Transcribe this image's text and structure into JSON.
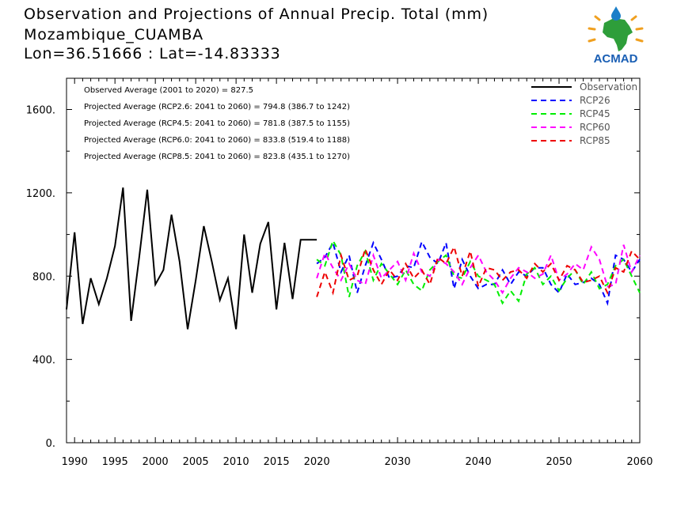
{
  "header": {
    "line1": "Observation and Projections of Annual Precip. Total (mm)",
    "line2": "Mozambique_CUAMBA",
    "line3": "Lon=36.51666 : Lat=-14.83333"
  },
  "logo": {
    "text": "ACMAD",
    "icon": "africa-map-logo"
  },
  "stats": {
    "observed": "Observed Average (2001 to 2020) = 827.5",
    "rcp26": "Projected Average (RCP2.6: 2041 to 2060) = 794.8 (386.7 to 1242)",
    "rcp45": "Projected Average (RCP4.5: 2041 to 2060) = 781.8 (387.5 to 1155)",
    "rcp60": "Projected Average (RCP6.0: 2041 to 2060) = 833.8 (519.4 to 1188)",
    "rcp85": "Projected Average (RCP8.5: 2041 to 2060) = 823.8 (435.1 to 1270)"
  },
  "chart_data": {
    "type": "line",
    "xlim": [
      1989,
      2060
    ],
    "ylim": [
      0,
      1750
    ],
    "x_ticks": [
      1990,
      1995,
      2000,
      2005,
      2010,
      2015,
      2020,
      2030,
      2040,
      2050,
      2060
    ],
    "y_ticks": [
      0,
      400,
      800,
      1200,
      1600
    ],
    "y_tick_labels": [
      "0.",
      "400.",
      "800.",
      "1200.",
      "1600."
    ],
    "legend_position": "top-right",
    "series": [
      {
        "name": "Observation",
        "color": "#000000",
        "style": "solid",
        "x": [
          1989,
          1990,
          1991,
          1992,
          1993,
          1994,
          1995,
          1996,
          1997,
          1998,
          1999,
          2000,
          2001,
          2002,
          2003,
          2004,
          2005,
          2006,
          2007,
          2008,
          2009,
          2010,
          2011,
          2012,
          2013,
          2014,
          2015,
          2016,
          2017,
          2018,
          2019,
          2020
        ],
        "y": [
          640,
          1010,
          570,
          790,
          665,
          790,
          945,
          1225,
          585,
          890,
          1215,
          760,
          830,
          1095,
          870,
          545,
          780,
          1040,
          870,
          685,
          790,
          545,
          1000,
          720,
          955,
          1060,
          640,
          960,
          690,
          975,
          975,
          975
        ]
      },
      {
        "name": "RCP26",
        "color": "#0000ff",
        "style": "dashed",
        "x": [
          2020,
          2021,
          2022,
          2023,
          2024,
          2025,
          2026,
          2027,
          2028,
          2029,
          2030,
          2031,
          2032,
          2033,
          2034,
          2035,
          2036,
          2037,
          2038,
          2039,
          2040,
          2041,
          2042,
          2043,
          2044,
          2045,
          2046,
          2047,
          2048,
          2049,
          2050,
          2051,
          2052,
          2053,
          2054,
          2055,
          2056,
          2057,
          2058,
          2059,
          2060
        ],
        "y": [
          860,
          890,
          960,
          820,
          900,
          720,
          850,
          960,
          880,
          790,
          800,
          850,
          840,
          965,
          890,
          860,
          960,
          740,
          880,
          800,
          740,
          760,
          760,
          830,
          760,
          820,
          800,
          840,
          840,
          760,
          720,
          810,
          760,
          770,
          790,
          760,
          670,
          900,
          880,
          820,
          880
        ]
      },
      {
        "name": "RCP45",
        "color": "#00ee00",
        "style": "dashed",
        "x": [
          2020,
          2021,
          2022,
          2023,
          2024,
          2025,
          2026,
          2027,
          2028,
          2029,
          2030,
          2031,
          2032,
          2033,
          2034,
          2035,
          2036,
          2037,
          2038,
          2039,
          2040,
          2041,
          2042,
          2043,
          2044,
          2045,
          2046,
          2047,
          2048,
          2049,
          2050,
          2051,
          2052,
          2053,
          2054,
          2055,
          2056,
          2057,
          2058,
          2059,
          2060
        ],
        "y": [
          880,
          850,
          970,
          900,
          700,
          850,
          920,
          780,
          860,
          810,
          760,
          830,
          760,
          730,
          830,
          870,
          900,
          800,
          790,
          870,
          800,
          780,
          760,
          670,
          730,
          680,
          810,
          840,
          760,
          800,
          730,
          790,
          830,
          760,
          820,
          740,
          760,
          850,
          880,
          800,
          720
        ]
      },
      {
        "name": "RCP60",
        "color": "#ff00ff",
        "style": "dashed",
        "x": [
          2020,
          2021,
          2022,
          2023,
          2024,
          2025,
          2026,
          2027,
          2028,
          2029,
          2030,
          2031,
          2032,
          2033,
          2034,
          2035,
          2036,
          2037,
          2038,
          2039,
          2040,
          2041,
          2042,
          2043,
          2044,
          2045,
          2046,
          2047,
          2048,
          2049,
          2050,
          2051,
          2052,
          2053,
          2054,
          2055,
          2056,
          2057,
          2058,
          2059,
          2060
        ],
        "y": [
          790,
          910,
          840,
          780,
          860,
          780,
          760,
          900,
          790,
          830,
          870,
          780,
          910,
          820,
          800,
          880,
          860,
          820,
          760,
          840,
          900,
          820,
          780,
          720,
          790,
          840,
          820,
          790,
          810,
          900,
          780,
          810,
          860,
          830,
          940,
          880,
          750,
          760,
          950,
          820,
          900
        ]
      },
      {
        "name": "RCP85",
        "color": "#ee0000",
        "style": "dashed",
        "x": [
          2020,
          2021,
          2022,
          2023,
          2024,
          2025,
          2026,
          2027,
          2028,
          2029,
          2030,
          2031,
          2032,
          2033,
          2034,
          2035,
          2036,
          2037,
          2038,
          2039,
          2040,
          2041,
          2042,
          2043,
          2044,
          2045,
          2046,
          2047,
          2048,
          2049,
          2050,
          2051,
          2052,
          2053,
          2054,
          2055,
          2056,
          2057,
          2058,
          2059,
          2060
        ],
        "y": [
          700,
          820,
          720,
          900,
          780,
          800,
          930,
          830,
          760,
          830,
          780,
          860,
          790,
          830,
          760,
          890,
          860,
          940,
          800,
          920,
          750,
          840,
          830,
          780,
          820,
          830,
          790,
          860,
          820,
          860,
          780,
          850,
          830,
          770,
          780,
          800,
          720,
          840,
          820,
          920,
          880
        ]
      }
    ]
  }
}
